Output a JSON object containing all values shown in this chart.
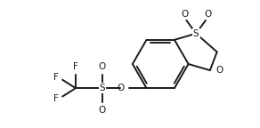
{
  "bg_color": "#ffffff",
  "line_color": "#1a1a1a",
  "line_width": 1.4,
  "font_size": 7.5,
  "xlim": [
    0,
    10
  ],
  "ylim": [
    0,
    5
  ]
}
